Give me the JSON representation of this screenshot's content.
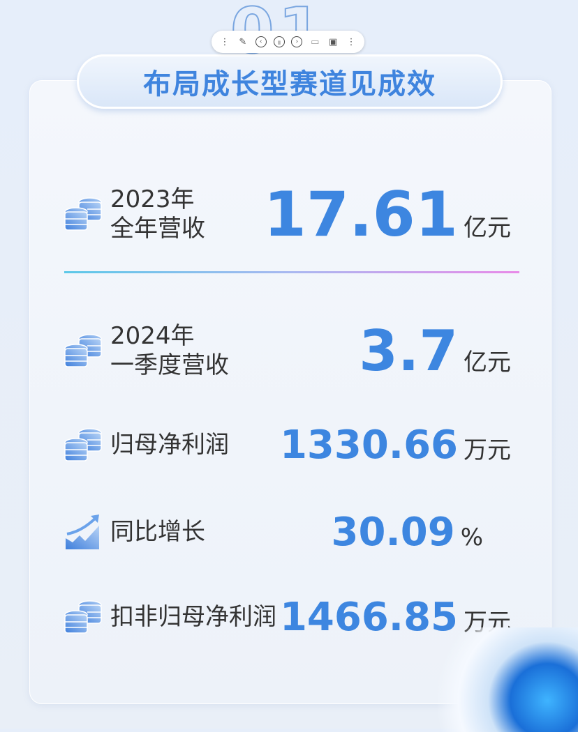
{
  "background_number": "01",
  "title": "布局成长型赛道见成效",
  "toolbar": {
    "icons": [
      "drag-handle-icon",
      "edit-icon",
      "previous-icon",
      "pause-icon",
      "next-icon",
      "save-icon",
      "save-as-icon",
      "drag-handle-icon"
    ]
  },
  "rows": [
    {
      "label1": "2023年",
      "label2": "全年营收",
      "value": "17.61",
      "unit": "亿元",
      "icon": "coins-icon"
    },
    {
      "label1": "2024年",
      "label2": "一季度营收",
      "value": "3.7",
      "unit": "亿元",
      "icon": "coins-icon"
    },
    {
      "label1": "归母净利润",
      "value": "1330.66",
      "unit": "万元",
      "icon": "coins-icon"
    },
    {
      "label1": "同比增长",
      "value": "30.09",
      "unit": "%",
      "icon": "growth-chart-icon"
    },
    {
      "label1": "扣非归母净利润",
      "value": "1466.85",
      "unit": "万元",
      "icon": "coins-icon"
    }
  ],
  "colors": {
    "accent": "#3d86e0",
    "text": "#333333"
  }
}
